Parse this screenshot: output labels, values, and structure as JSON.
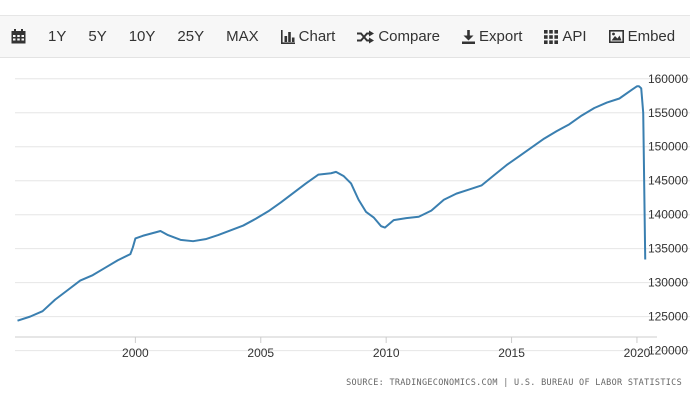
{
  "toolbar": {
    "items": [
      {
        "id": "calendar",
        "label": "",
        "icon": "calendar-icon"
      },
      {
        "id": "1y",
        "label": "1Y"
      },
      {
        "id": "5y",
        "label": "5Y"
      },
      {
        "id": "10y",
        "label": "10Y"
      },
      {
        "id": "25y",
        "label": "25Y"
      },
      {
        "id": "max",
        "label": "MAX"
      },
      {
        "id": "chart",
        "label": "Chart",
        "icon": "bar-chart-icon"
      },
      {
        "id": "compare",
        "label": "Compare",
        "icon": "shuffle-icon"
      },
      {
        "id": "export",
        "label": "Export",
        "icon": "download-icon"
      },
      {
        "id": "api",
        "label": "API",
        "icon": "grid-icon"
      },
      {
        "id": "embed",
        "label": "Embed",
        "icon": "image-icon"
      }
    ]
  },
  "chart_data": {
    "type": "line",
    "title": "",
    "xlabel": "",
    "ylabel": "",
    "xlim": [
      1995.2,
      2020.6
    ],
    "ylim": [
      122000,
      161000
    ],
    "x_ticks": [
      2000,
      2005,
      2010,
      2015,
      2020
    ],
    "x_tick_labels": [
      "2000",
      "2005",
      "2010",
      "2015",
      "2020"
    ],
    "y_ticks": [
      120000,
      125000,
      130000,
      135000,
      140000,
      145000,
      150000,
      155000,
      160000
    ],
    "y_tick_labels": [
      "120000",
      "125000",
      "130000",
      "135000",
      "140000",
      "145000",
      "150000",
      "155000",
      "160000"
    ],
    "y_axis_position": "right",
    "grid": "horizontal",
    "line_color": "#3a7fb0",
    "series": [
      {
        "name": "",
        "x": [
          1995.3,
          1995.8,
          1996.3,
          1996.8,
          1997.3,
          1997.8,
          1998.3,
          1998.8,
          1999.3,
          1999.8,
          1999.9,
          2000.0,
          2000.3,
          2000.8,
          2001.0,
          2001.3,
          2001.8,
          2002.3,
          2002.8,
          2003.3,
          2003.8,
          2004.3,
          2004.8,
          2005.3,
          2005.8,
          2006.3,
          2006.8,
          2007.3,
          2007.8,
          2008.0,
          2008.3,
          2008.6,
          2008.9,
          2009.2,
          2009.5,
          2009.8,
          2009.95,
          2010.3,
          2010.8,
          2011.3,
          2011.8,
          2012.3,
          2012.8,
          2013.3,
          2013.8,
          2014.3,
          2014.8,
          2015.3,
          2015.8,
          2016.3,
          2016.8,
          2017.3,
          2017.8,
          2018.3,
          2018.8,
          2019.3,
          2019.8,
          2020.0,
          2020.08,
          2020.17,
          2020.25,
          2020.33
        ],
        "values": [
          124400,
          125000,
          125800,
          127500,
          128900,
          130300,
          131100,
          132200,
          133300,
          134200,
          135200,
          136500,
          136900,
          137400,
          137600,
          137000,
          136300,
          136100,
          136400,
          137000,
          137700,
          138400,
          139400,
          140500,
          141800,
          143200,
          144600,
          145900,
          146100,
          146300,
          145700,
          144600,
          142200,
          140400,
          139600,
          138300,
          138100,
          139200,
          139500,
          139700,
          140600,
          142200,
          143100,
          143700,
          144300,
          145800,
          147300,
          148600,
          149900,
          151200,
          152300,
          153300,
          154600,
          155700,
          156500,
          157100,
          158400,
          158900,
          158900,
          158600,
          155000,
          133400
        ]
      }
    ],
    "source": "SOURCE: TRADINGECONOMICS.COM | U.S. BUREAU OF LABOR STATISTICS"
  }
}
